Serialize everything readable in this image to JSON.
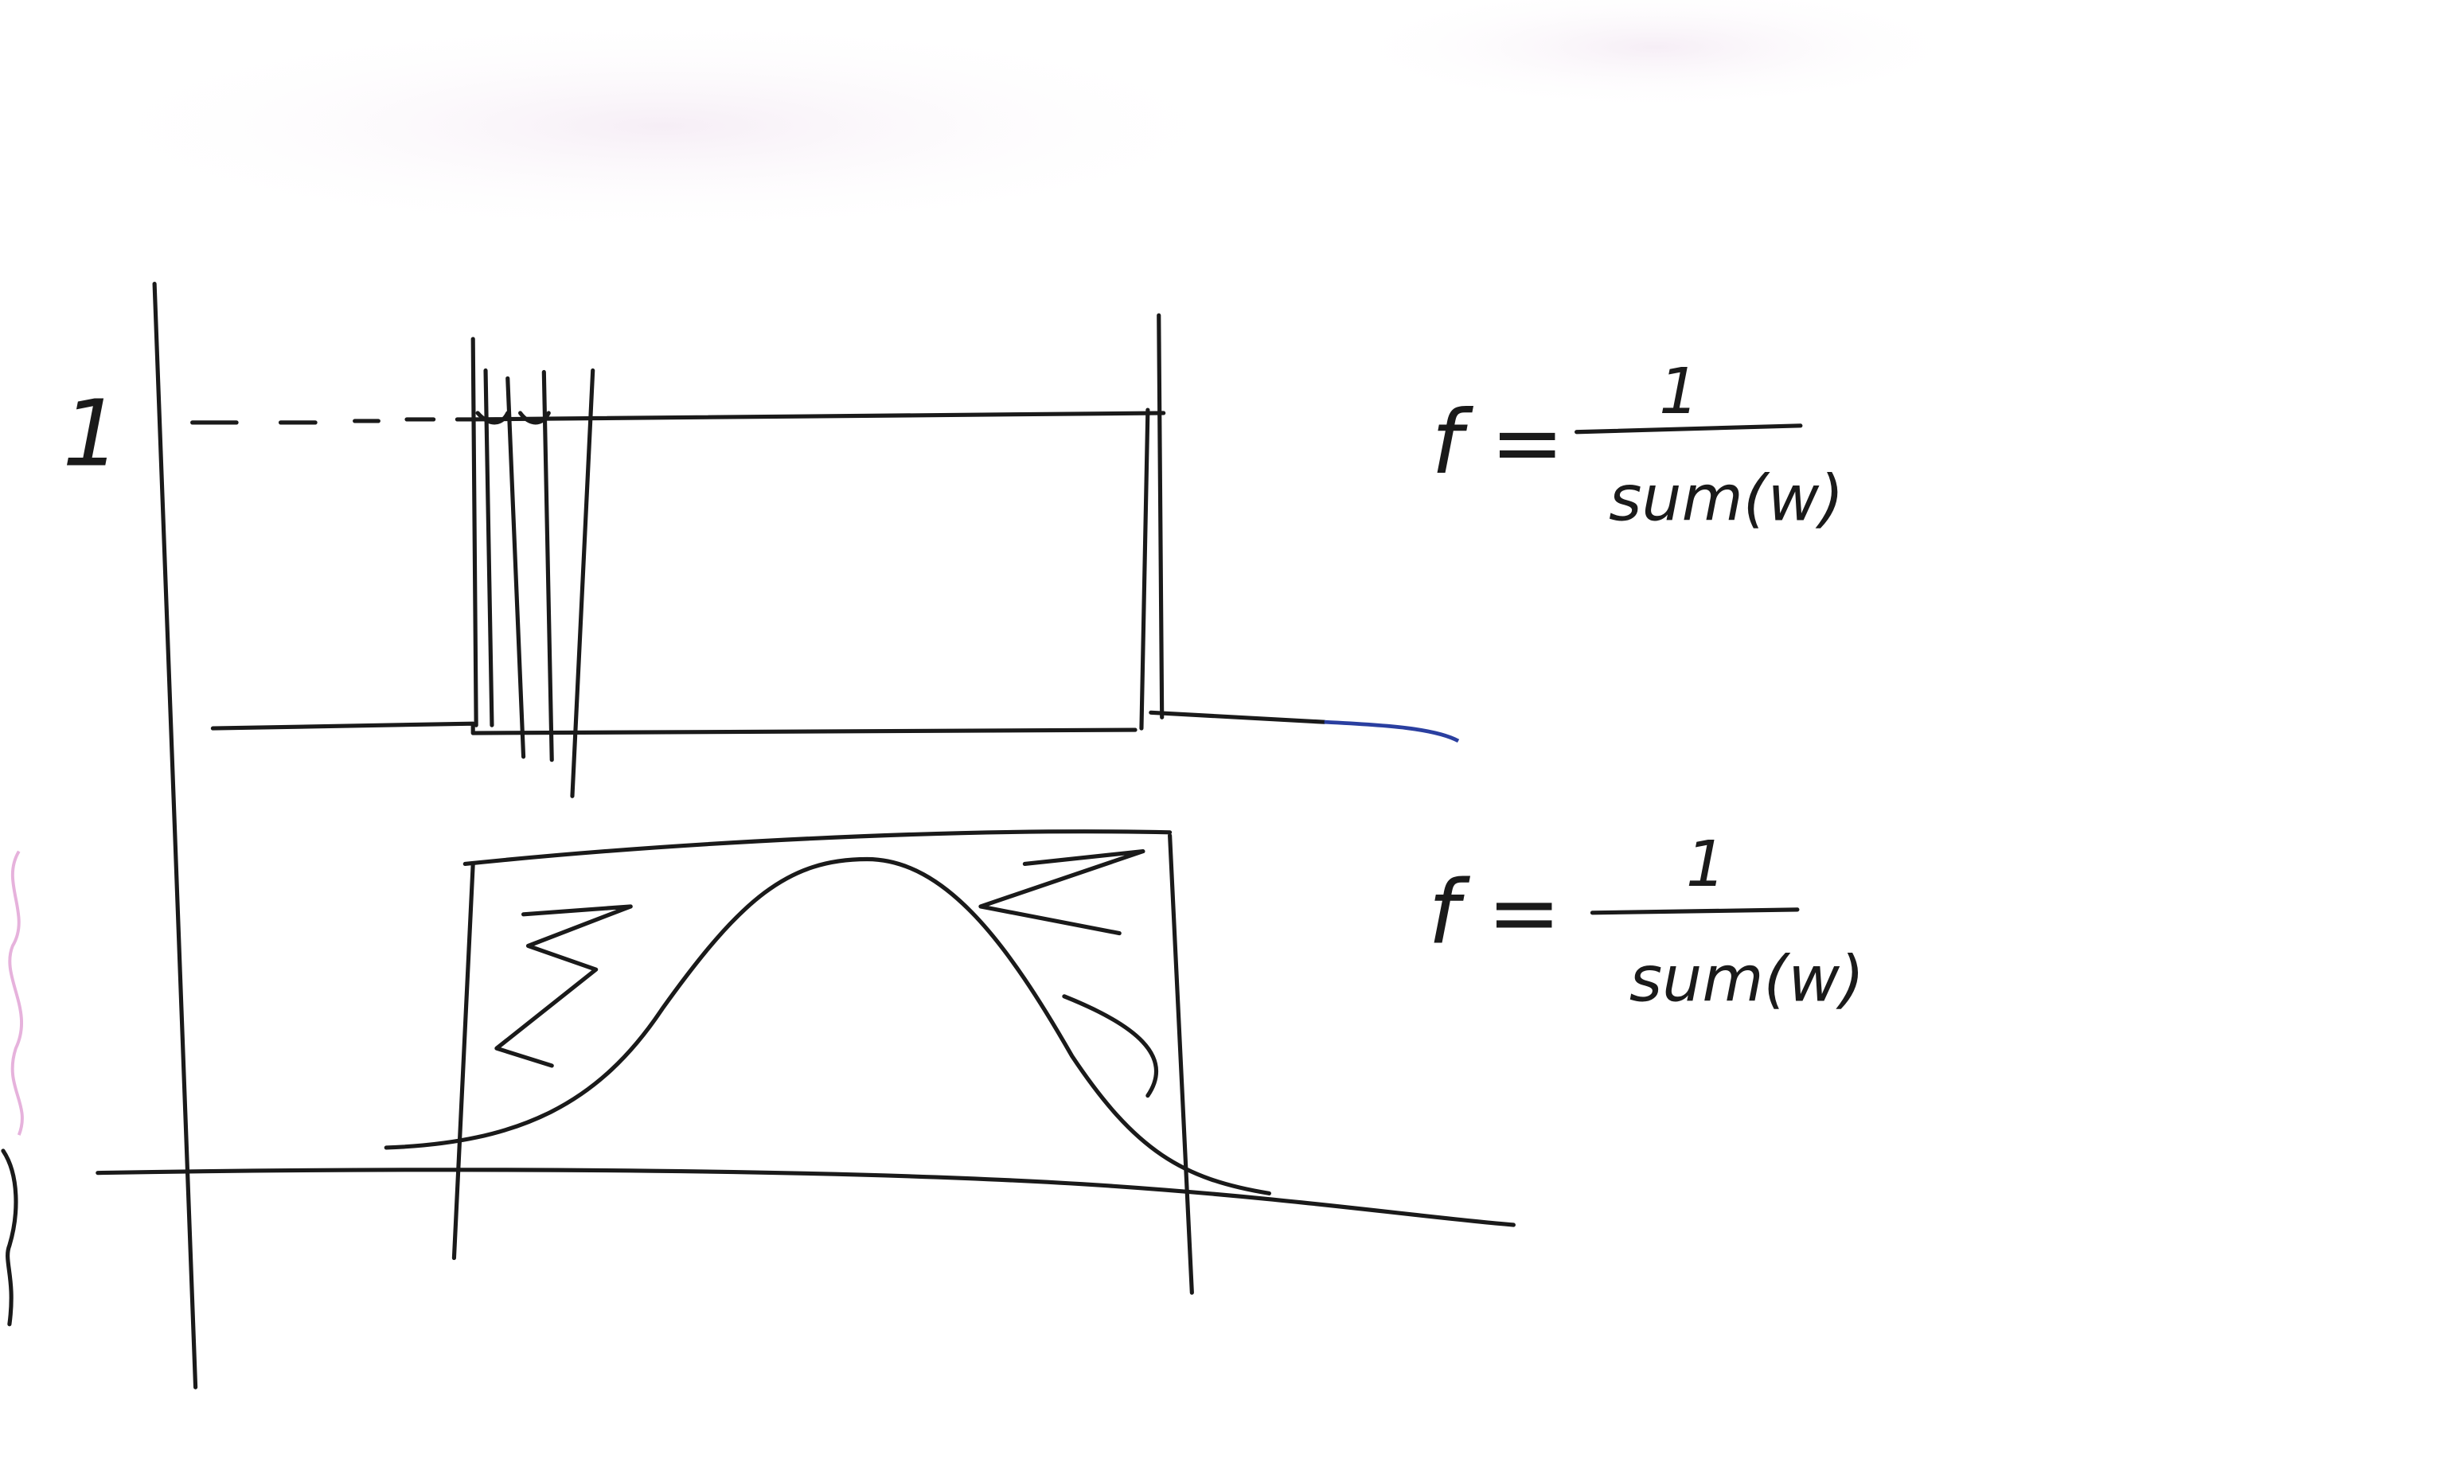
{
  "axis_label": "1",
  "formulas": [
    {
      "lhs": "f =",
      "numerator": "1",
      "denominator": "sum(w)"
    },
    {
      "lhs": "f =",
      "numerator": "1",
      "denominator": "sum(w)"
    }
  ]
}
